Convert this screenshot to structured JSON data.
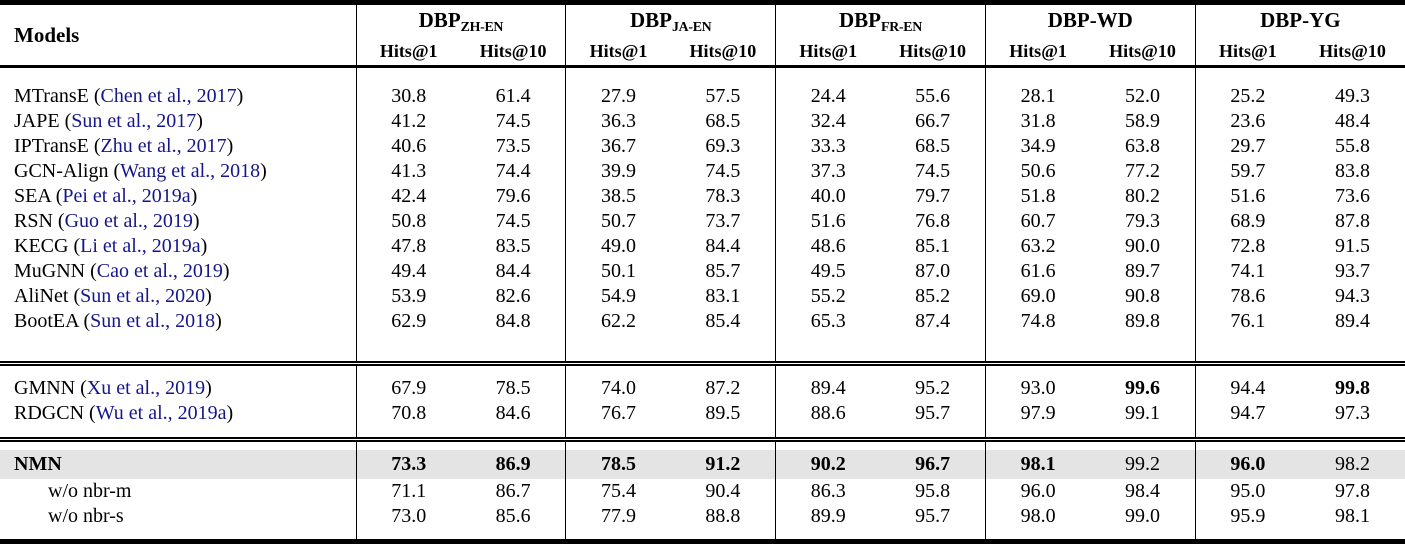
{
  "table": {
    "models_header": "Models",
    "metric_labels": [
      "Hits@1",
      "Hits@10"
    ],
    "groups": [
      {
        "main": "DBP",
        "subscript": "ZH-EN"
      },
      {
        "main": "DBP",
        "subscript": "JA-EN"
      },
      {
        "main": "DBP",
        "subscript": "FR-EN"
      },
      {
        "main": "DBP-WD",
        "subscript": ""
      },
      {
        "main": "DBP-YG",
        "subscript": ""
      }
    ],
    "colors": {
      "citation": "#16168c",
      "highlight_row": "#e4e4e4",
      "rule": "#000000"
    },
    "sections": [
      {
        "rows": [
          {
            "model": "MTransE",
            "citation": "Chen et al., 2017",
            "values": [
              "30.8",
              "61.4",
              "27.9",
              "57.5",
              "24.4",
              "55.6",
              "28.1",
              "52.0",
              "25.2",
              "49.3"
            ]
          },
          {
            "model": "JAPE",
            "citation": "Sun et al., 2017",
            "values": [
              "41.2",
              "74.5",
              "36.3",
              "68.5",
              "32.4",
              "66.7",
              "31.8",
              "58.9",
              "23.6",
              "48.4"
            ]
          },
          {
            "model": "IPTransE",
            "citation": "Zhu et al., 2017",
            "values": [
              "40.6",
              "73.5",
              "36.7",
              "69.3",
              "33.3",
              "68.5",
              "34.9",
              "63.8",
              "29.7",
              "55.8"
            ]
          },
          {
            "model": "GCN-Align",
            "citation": "Wang et al., 2018",
            "values": [
              "41.3",
              "74.4",
              "39.9",
              "74.5",
              "37.3",
              "74.5",
              "50.6",
              "77.2",
              "59.7",
              "83.8"
            ]
          },
          {
            "model": "SEA",
            "citation": "Pei et al., 2019a",
            "values": [
              "42.4",
              "79.6",
              "38.5",
              "78.3",
              "40.0",
              "79.7",
              "51.8",
              "80.2",
              "51.6",
              "73.6"
            ]
          },
          {
            "model": "RSN",
            "citation": "Guo et al., 2019",
            "values": [
              "50.8",
              "74.5",
              "50.7",
              "73.7",
              "51.6",
              "76.8",
              "60.7",
              "79.3",
              "68.9",
              "87.8"
            ]
          },
          {
            "model": "KECG",
            "citation": "Li et al., 2019a",
            "values": [
              "47.8",
              "83.5",
              "49.0",
              "84.4",
              "48.6",
              "85.1",
              "63.2",
              "90.0",
              "72.8",
              "91.5"
            ]
          },
          {
            "model": "MuGNN",
            "citation": "Cao et al., 2019",
            "values": [
              "49.4",
              "84.4",
              "50.1",
              "85.7",
              "49.5",
              "87.0",
              "61.6",
              "89.7",
              "74.1",
              "93.7"
            ]
          },
          {
            "model": "AliNet",
            "citation": "Sun et al., 2020",
            "values": [
              "53.9",
              "82.6",
              "54.9",
              "83.1",
              "55.2",
              "85.2",
              "69.0",
              "90.8",
              "78.6",
              "94.3"
            ]
          },
          {
            "model": "BootEA",
            "citation": "Sun et al., 2018",
            "values": [
              "62.9",
              "84.8",
              "62.2",
              "85.4",
              "65.3",
              "87.4",
              "74.8",
              "89.8",
              "76.1",
              "89.4"
            ]
          }
        ]
      },
      {
        "rows": [
          {
            "model": "GMNN",
            "citation": "Xu et al., 2019",
            "values": [
              "67.9",
              "78.5",
              "74.0",
              "87.2",
              "89.4",
              "95.2",
              "93.0",
              "99.6",
              "94.4",
              "99.8"
            ],
            "bold_values": [
              7,
              9
            ]
          },
          {
            "model": "RDGCN",
            "citation": "Wu et al., 2019a",
            "values": [
              "70.8",
              "84.6",
              "76.7",
              "89.5",
              "88.6",
              "95.7",
              "97.9",
              "99.1",
              "94.7",
              "97.3"
            ]
          }
        ]
      },
      {
        "rows": [
          {
            "model": "NMN",
            "citation": null,
            "bold_model": true,
            "highlight": true,
            "values": [
              "73.3",
              "86.9",
              "78.5",
              "91.2",
              "90.2",
              "96.7",
              "98.1",
              "99.2",
              "96.0",
              "98.2"
            ],
            "bold_values": [
              0,
              1,
              2,
              3,
              4,
              5,
              6,
              8
            ]
          },
          {
            "model": "w/o nbr-m",
            "citation": null,
            "indent": true,
            "values": [
              "71.1",
              "86.7",
              "75.4",
              "90.4",
              "86.3",
              "95.8",
              "96.0",
              "98.4",
              "95.0",
              "97.8"
            ]
          },
          {
            "model": "w/o nbr-s",
            "citation": null,
            "indent": true,
            "values": [
              "73.0",
              "85.6",
              "77.9",
              "88.8",
              "89.9",
              "95.7",
              "98.0",
              "99.0",
              "95.9",
              "98.1"
            ]
          }
        ]
      }
    ]
  }
}
